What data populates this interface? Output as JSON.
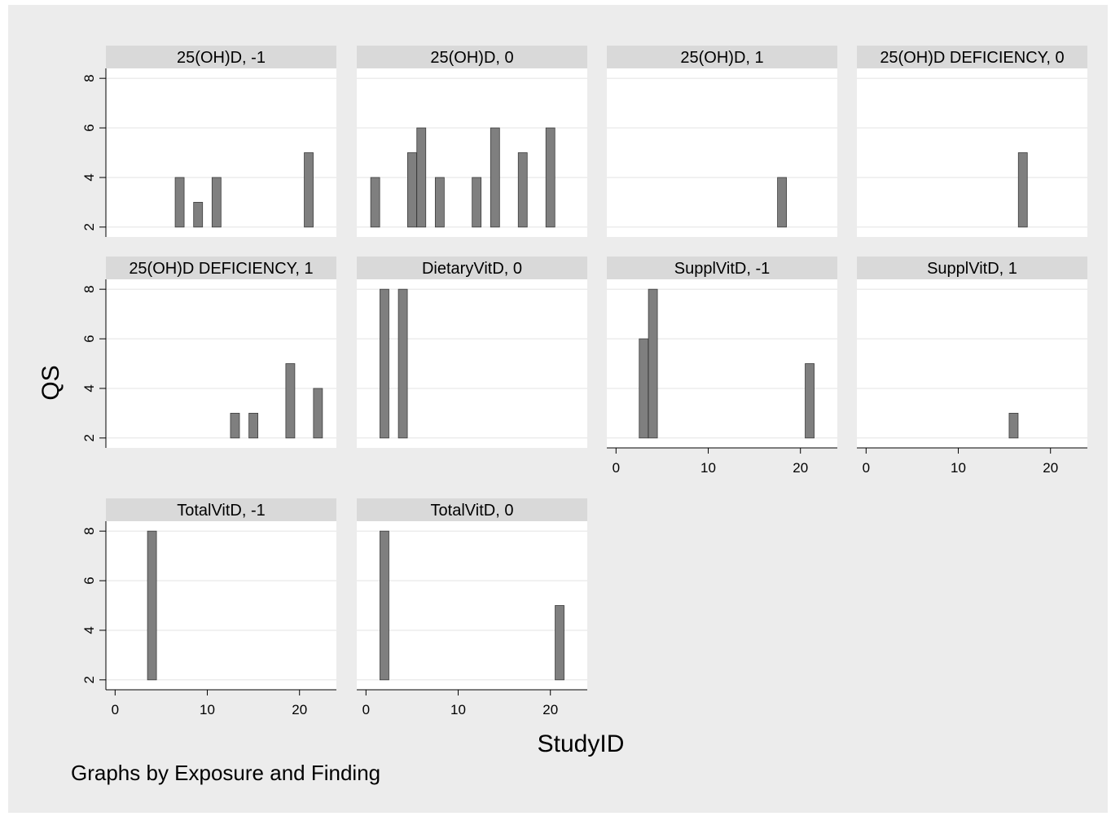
{
  "chart_data": {
    "type": "bar",
    "xlabel": "StudyID",
    "ylabel": "QS",
    "note": "Graphs by Exposure and Finding",
    "xlim": [
      -1,
      24
    ],
    "xticks": [
      0,
      10,
      20
    ],
    "ylim": [
      1.6,
      8.4
    ],
    "yticks": [
      2,
      4,
      6,
      8
    ],
    "grid": true,
    "colors": {
      "outer_bg": "#ececec",
      "plot_bg": "#ffffff",
      "strip_bg": "#d9d9d9",
      "bar_fill": "#7f7f7f",
      "bar_stroke": "#3c3c3c",
      "grid": "#e6e6e6"
    },
    "panels": [
      {
        "title": "25(OH)D, -1",
        "bars": [
          {
            "x": 7,
            "y": 4
          },
          {
            "x": 9,
            "y": 3
          },
          {
            "x": 11,
            "y": 4
          },
          {
            "x": 21,
            "y": 5
          }
        ]
      },
      {
        "title": "25(OH)D, 0",
        "bars": [
          {
            "x": 1,
            "y": 4
          },
          {
            "x": 5,
            "y": 5
          },
          {
            "x": 6,
            "y": 6
          },
          {
            "x": 8,
            "y": 4
          },
          {
            "x": 12,
            "y": 4
          },
          {
            "x": 14,
            "y": 6
          },
          {
            "x": 17,
            "y": 5
          },
          {
            "x": 20,
            "y": 6
          }
        ]
      },
      {
        "title": "25(OH)D, 1",
        "bars": [
          {
            "x": 18,
            "y": 4
          }
        ]
      },
      {
        "title": "25(OH)D DEFICIENCY, 0",
        "bars": [
          {
            "x": 17,
            "y": 5
          }
        ]
      },
      {
        "title": "25(OH)D DEFICIENCY, 1",
        "bars": [
          {
            "x": 13,
            "y": 3
          },
          {
            "x": 15,
            "y": 3
          },
          {
            "x": 19,
            "y": 5
          },
          {
            "x": 22,
            "y": 4
          }
        ]
      },
      {
        "title": "DietaryVitD, 0",
        "bars": [
          {
            "x": 2,
            "y": 8
          },
          {
            "x": 4,
            "y": 8
          }
        ]
      },
      {
        "title": "SupplVitD, -1",
        "bars": [
          {
            "x": 3,
            "y": 6
          },
          {
            "x": 4,
            "y": 8
          },
          {
            "x": 21,
            "y": 5
          }
        ]
      },
      {
        "title": "SupplVitD, 1",
        "bars": [
          {
            "x": 16,
            "y": 3
          }
        ]
      },
      {
        "title": "TotalVitD, -1",
        "bars": [
          {
            "x": 4,
            "y": 8
          }
        ]
      },
      {
        "title": "TotalVitD, 0",
        "bars": [
          {
            "x": 2,
            "y": 8
          },
          {
            "x": 21,
            "y": 5
          }
        ]
      }
    ]
  }
}
